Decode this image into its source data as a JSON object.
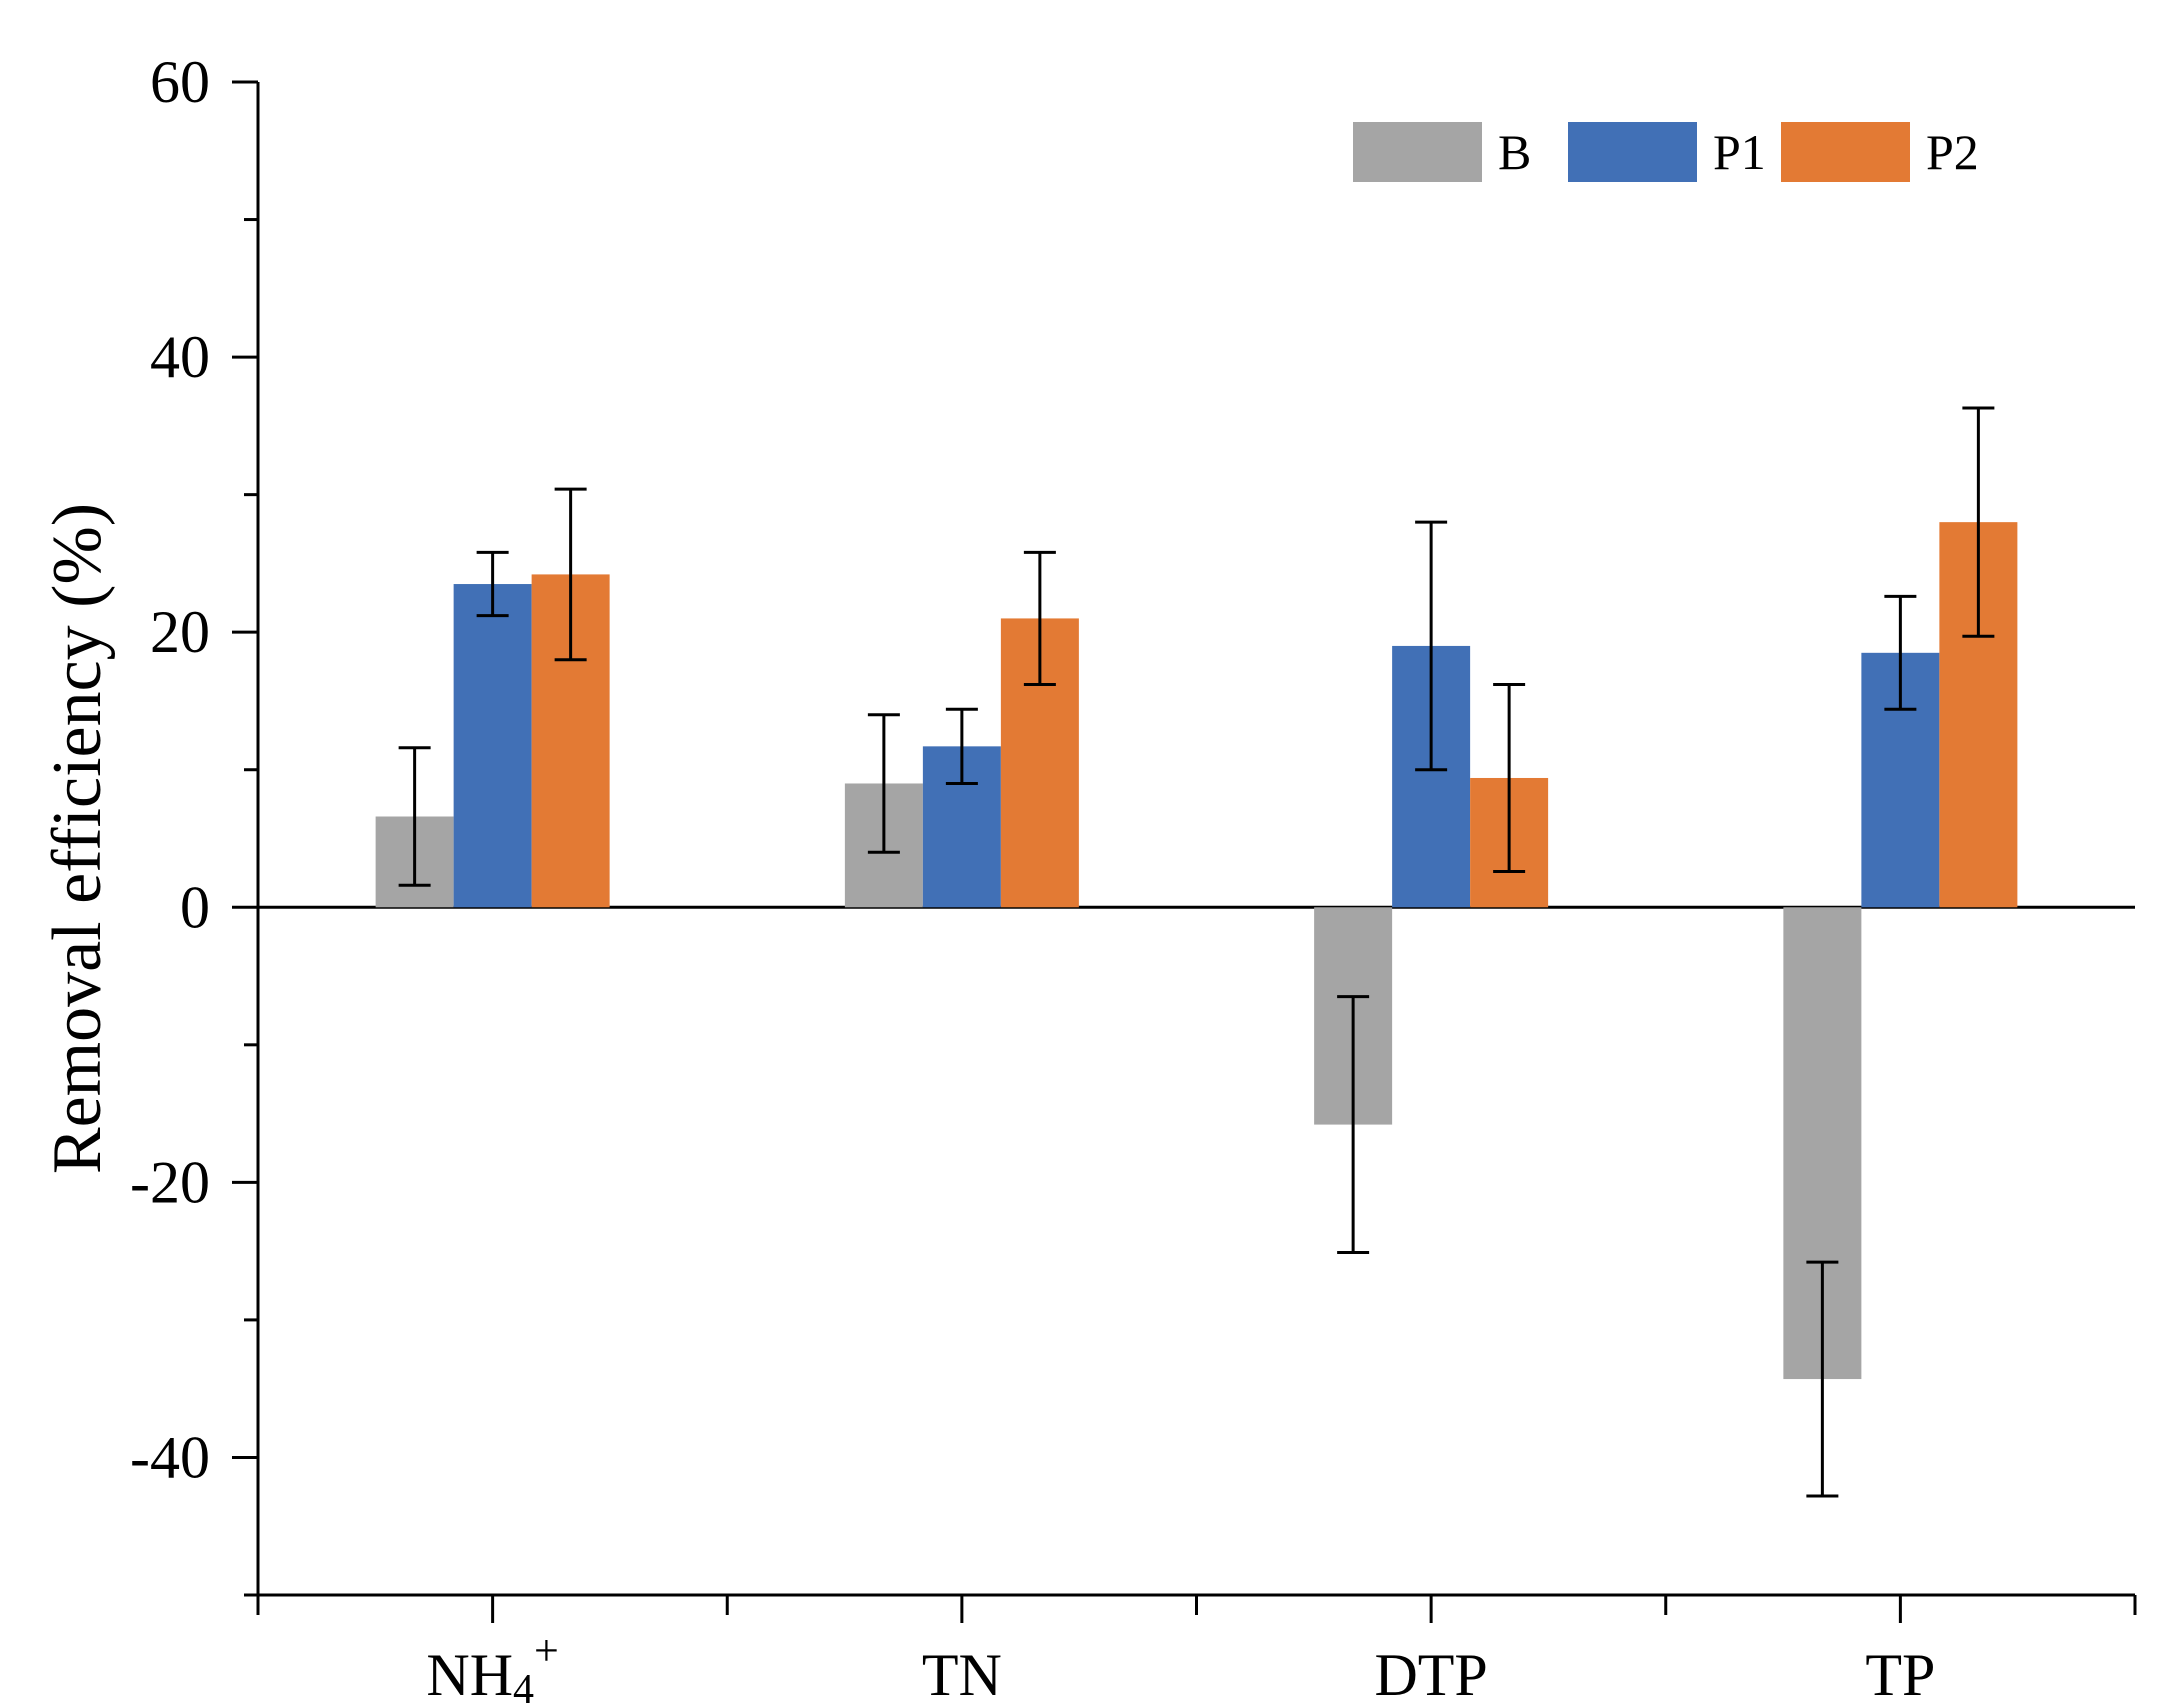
{
  "chart_data": {
    "type": "bar",
    "title": "",
    "xlabel": "",
    "ylabel": "Removal efficiency (%)",
    "ylim": [
      -50,
      60
    ],
    "yticks": [
      -40,
      -20,
      0,
      20,
      40,
      60
    ],
    "categories": [
      {
        "base": "NH",
        "sub": "4",
        "sup": "+"
      },
      {
        "base": "TN",
        "sub": "",
        "sup": ""
      },
      {
        "base": "DTP",
        "sub": "",
        "sup": ""
      },
      {
        "base": "TP",
        "sub": "",
        "sup": ""
      }
    ],
    "legend_position": "top-right",
    "grid": false,
    "series": [
      {
        "name": "B",
        "color": "#a5a5a5",
        "values": [
          6.6,
          9.0,
          -15.8,
          -34.3
        ],
        "errors": [
          5.0,
          5.0,
          9.3,
          8.5
        ]
      },
      {
        "name": "P1",
        "color": "#4170b6",
        "values": [
          23.5,
          11.7,
          19.0,
          18.5
        ],
        "errors": [
          2.3,
          2.7,
          9.0,
          4.1
        ]
      },
      {
        "name": "P2",
        "color": "#e37a34",
        "values": [
          24.2,
          21.0,
          9.4,
          28.0
        ],
        "errors": [
          6.2,
          4.8,
          6.8,
          8.3
        ]
      }
    ]
  }
}
